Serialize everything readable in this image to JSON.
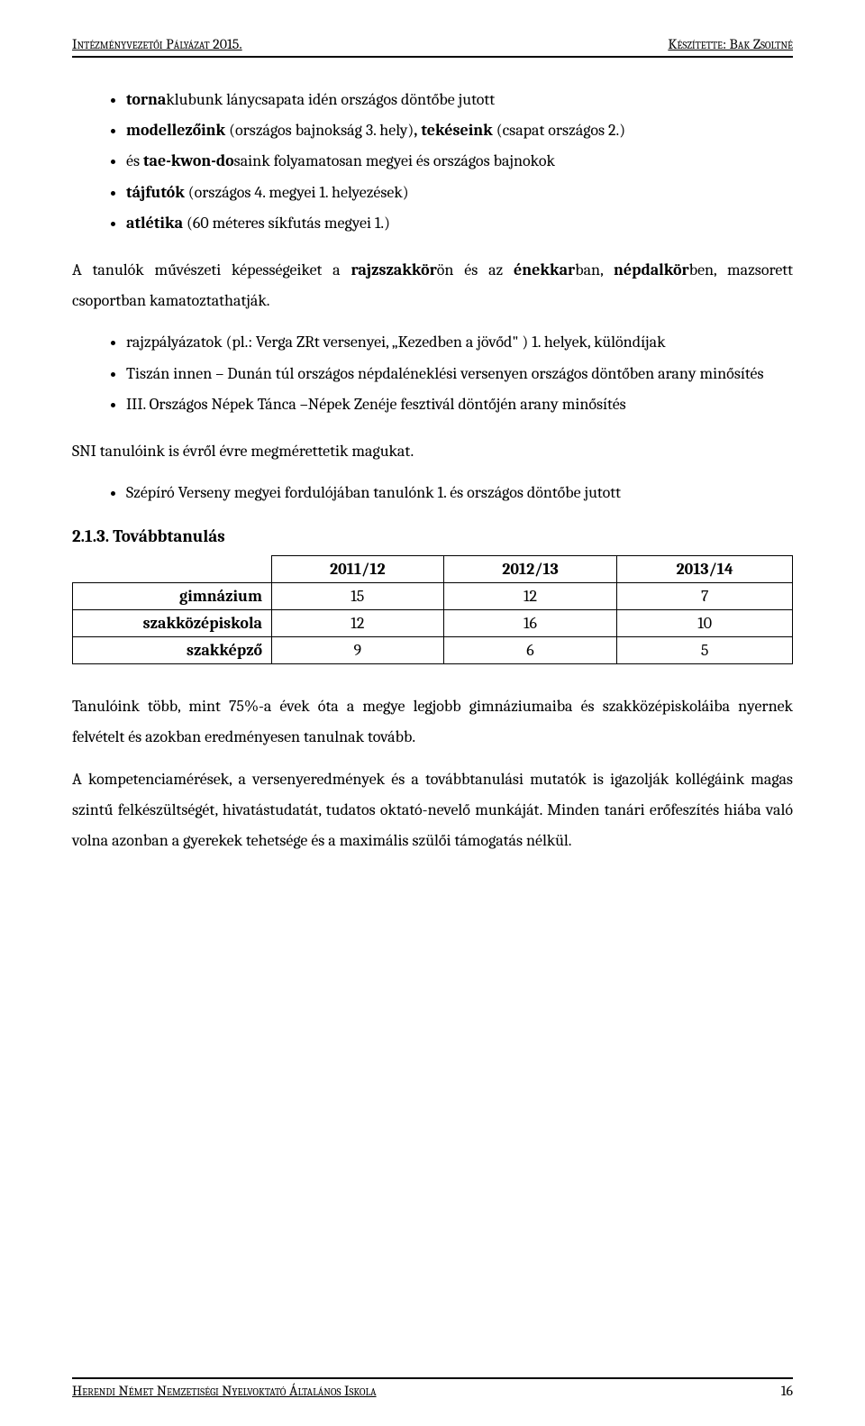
{
  "header": {
    "left": "Intézményvezetői Pályázat 2015.",
    "right": "Készítette: Bak Zsoltné"
  },
  "footer": {
    "left": "Herendi Német Nemzetiségi Nyelvoktató Általános Iskola",
    "page": "16"
  },
  "bullets_a": [
    {
      "pre": "torna",
      "post": "klubunk lánycsapata idén országos döntőbe jutott"
    },
    {
      "pre": "modellezőink",
      "post": " (országos bajnokság 3. hely)",
      "bold2": ", tekéseink",
      "post2": " (csapat országos 2.)"
    },
    {
      "pre1": "és ",
      "bold1": "tae-kwon-do",
      "post1": "saink folyamatosan megyei és országos bajnokok"
    },
    {
      "pre": "tájfutók",
      "post": " (országos 4. megyei 1. helyezések)"
    },
    {
      "pre": "atlétika",
      "post": " (60 méteres síkfutás megyei 1.)"
    }
  ],
  "para1": {
    "p1": "A tanulók művészeti képességeiket a ",
    "b1": "rajzszakkör",
    "p2": "ön és az ",
    "b2": "énekkar",
    "p3": "ban, ",
    "b3": "népdalkör",
    "p4": "ben, mazsorett csoportban kamatoztathatják."
  },
  "bullets_b": [
    "rajzpályázatok (pl.: Verga ZRt versenyei, „Kezedben a jövőd\" ) 1. helyek, különdíjak",
    "Tiszán innen – Dunán túl országos népdaléneklési versenyen országos döntőben arany minősítés",
    "III. Országos Népek Tánca –Népek Zenéje fesztivál döntőjén arany minősítés"
  ],
  "para2": "SNI tanulóink is évről évre megmérettetik magukat.",
  "bullets_c": [
    "Szépíró Verseny megyei fordulójában tanulónk 1. és országos döntőbe jutott"
  ],
  "section": "2.1.3. Továbbtanulás",
  "table": {
    "columns": [
      "2011/12",
      "2012/13",
      "2013/14"
    ],
    "rows": [
      {
        "label": "gimnázium",
        "cells": [
          "15",
          "12",
          "7"
        ]
      },
      {
        "label": "szakközépiskola",
        "cells": [
          "12",
          "16",
          "10"
        ]
      },
      {
        "label": "szakképző",
        "cells": [
          "9",
          "6",
          "5"
        ]
      }
    ]
  },
  "para3": "Tanulóink több, mint 75%-a évek óta a megye legjobb gimnáziumaiba és szakközépiskoláiba nyernek felvételt és azokban eredményesen tanulnak tovább.",
  "para4": "A kompetenciamérések, a versenyeredmények és a továbbtanulási mutatók is igazolják kollégáink magas szintű felkészültségét, hivatástudatát, tudatos oktató-nevelő munkáját. Minden tanári erőfeszítés hiába való volna azonban a gyerekek tehetsége és a maximális szülői támogatás nélkül."
}
